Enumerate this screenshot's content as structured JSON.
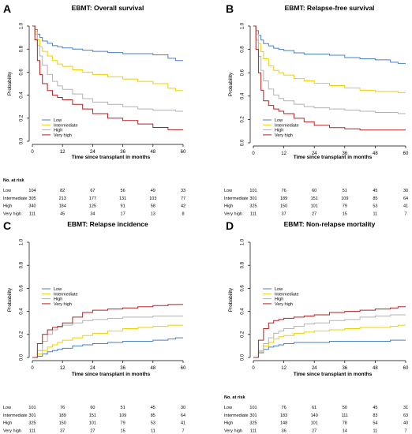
{
  "panels": [
    {
      "letter": "A",
      "title": "EBMT: Overall survival",
      "ylabel": "Probability",
      "xlabel": "Time since transplant in months",
      "risk_header": "No. at risk",
      "risk_table": [
        {
          "group": "Low",
          "counts": [
            "104",
            "82",
            "67",
            "56",
            "49",
            "33"
          ]
        },
        {
          "group": "Intermediate",
          "counts": [
            "305",
            "213",
            "177",
            "131",
            "103",
            "77"
          ]
        },
        {
          "group": "High",
          "counts": [
            "340",
            "184",
            "125",
            "91",
            "58",
            "42"
          ]
        },
        {
          "group": "Very high",
          "counts": [
            "111",
            "45",
            "34",
            "17",
            "13",
            "8"
          ]
        }
      ]
    },
    {
      "letter": "B",
      "title": "EBMT: Relapse-free survival",
      "ylabel": "Probability",
      "xlabel": "Time since transplant in months",
      "risk_header": "",
      "risk_table": [
        {
          "group": "Low",
          "counts": [
            "101",
            "76",
            "60",
            "51",
            "45",
            "30"
          ]
        },
        {
          "group": "Intermediate",
          "counts": [
            "301",
            "189",
            "151",
            "109",
            "85",
            "64"
          ]
        },
        {
          "group": "High",
          "counts": [
            "325",
            "150",
            "101",
            "79",
            "53",
            "41"
          ]
        },
        {
          "group": "Very high",
          "counts": [
            "111",
            "37",
            "27",
            "15",
            "11",
            "7"
          ]
        }
      ]
    },
    {
      "letter": "C",
      "title": "EBMT: Relapse incidence",
      "ylabel": "Probability",
      "xlabel": "Time since transplant in months",
      "risk_header": "",
      "risk_table": [
        {
          "group": "Low",
          "counts": [
            "101",
            "76",
            "60",
            "51",
            "45",
            "30"
          ]
        },
        {
          "group": "Intermediate",
          "counts": [
            "301",
            "189",
            "151",
            "109",
            "85",
            "64"
          ]
        },
        {
          "group": "High",
          "counts": [
            "325",
            "150",
            "101",
            "79",
            "53",
            "41"
          ]
        },
        {
          "group": "Very high",
          "counts": [
            "111",
            "37",
            "27",
            "15",
            "11",
            "7"
          ]
        }
      ]
    },
    {
      "letter": "D",
      "title": "EBMT: Non-relapse mortality",
      "ylabel": "Probability",
      "xlabel": "Time since transplant in months",
      "risk_header": "No. at risk",
      "risk_table": [
        {
          "group": "Low",
          "counts": [
            "101",
            "76",
            "61",
            "50",
            "45",
            "31"
          ]
        },
        {
          "group": "Intermediate",
          "counts": [
            "301",
            "183",
            "149",
            "111",
            "83",
            "63"
          ]
        },
        {
          "group": "High",
          "counts": [
            "325",
            "148",
            "101",
            "78",
            "54",
            "40"
          ]
        },
        {
          "group": "Very high",
          "counts": [
            "111",
            "36",
            "27",
            "14",
            "11",
            "7"
          ]
        }
      ]
    }
  ],
  "colors": {
    "Low": "#4a7fc9",
    "Intermediate": "#f0d000",
    "High": "#b3b3b3",
    "Very high": "#b22222"
  },
  "chart_data": [
    {
      "type": "line",
      "step": true,
      "title": "EBMT: Overall survival",
      "xlabel": "Time since transplant in months",
      "ylabel": "Probability",
      "xlim": [
        0,
        60
      ],
      "ylim": [
        0,
        1
      ],
      "xticks": [
        "0",
        "12",
        "24",
        "36",
        "48",
        "60"
      ],
      "yticks": [
        "0.0",
        "0.2",
        "0.4",
        "0.6",
        "0.8",
        "1.0"
      ],
      "legend_position": "left, mid-height",
      "series": [
        {
          "name": "Low",
          "x": [
            0,
            1,
            2,
            3,
            4,
            6,
            8,
            10,
            12,
            16,
            20,
            24,
            30,
            36,
            42,
            48,
            54,
            57,
            60
          ],
          "y": [
            1,
            0.97,
            0.93,
            0.9,
            0.87,
            0.85,
            0.83,
            0.82,
            0.81,
            0.8,
            0.79,
            0.78,
            0.77,
            0.76,
            0.76,
            0.75,
            0.72,
            0.7,
            0.7
          ]
        },
        {
          "name": "Intermediate",
          "x": [
            0,
            1,
            2,
            3,
            4,
            6,
            8,
            10,
            12,
            16,
            20,
            24,
            30,
            36,
            42,
            48,
            54,
            57,
            60
          ],
          "y": [
            1,
            0.95,
            0.88,
            0.82,
            0.78,
            0.74,
            0.7,
            0.67,
            0.65,
            0.62,
            0.6,
            0.58,
            0.56,
            0.54,
            0.52,
            0.5,
            0.46,
            0.44,
            0.44
          ]
        },
        {
          "name": "High",
          "x": [
            0,
            1,
            2,
            3,
            4,
            6,
            8,
            10,
            12,
            16,
            20,
            24,
            30,
            36,
            42,
            48,
            54,
            57,
            60
          ],
          "y": [
            1,
            0.93,
            0.83,
            0.74,
            0.66,
            0.58,
            0.52,
            0.48,
            0.45,
            0.41,
            0.37,
            0.34,
            0.32,
            0.3,
            0.28,
            0.27,
            0.27,
            0.26,
            0.26
          ]
        },
        {
          "name": "Very high",
          "x": [
            0,
            1,
            2,
            3,
            4,
            6,
            8,
            10,
            12,
            16,
            20,
            24,
            30,
            36,
            42,
            48,
            54,
            57,
            60
          ],
          "y": [
            1,
            0.88,
            0.7,
            0.58,
            0.5,
            0.44,
            0.4,
            0.38,
            0.36,
            0.32,
            0.28,
            0.24,
            0.2,
            0.18,
            0.15,
            0.12,
            0.1,
            0.1,
            0.1
          ]
        }
      ]
    },
    {
      "type": "line",
      "step": true,
      "title": "EBMT: Relapse-free survival",
      "xlabel": "Time since transplant in months",
      "ylabel": "Probability",
      "xlim": [
        0,
        60
      ],
      "ylim": [
        0,
        1
      ],
      "xticks": [
        "0",
        "12",
        "24",
        "36",
        "48",
        "60"
      ],
      "yticks": [
        "0.0",
        "0.2",
        "0.4",
        "0.6",
        "0.8",
        "1.0"
      ],
      "legend_position": "left, mid-height",
      "series": [
        {
          "name": "Low",
          "x": [
            0,
            1,
            2,
            3,
            4,
            6,
            8,
            10,
            12,
            16,
            20,
            24,
            30,
            36,
            42,
            48,
            54,
            57,
            60
          ],
          "y": [
            1,
            0.96,
            0.92,
            0.88,
            0.85,
            0.83,
            0.81,
            0.8,
            0.79,
            0.77,
            0.76,
            0.76,
            0.75,
            0.73,
            0.72,
            0.71,
            0.69,
            0.68,
            0.68
          ]
        },
        {
          "name": "Intermediate",
          "x": [
            0,
            1,
            2,
            3,
            4,
            6,
            8,
            10,
            12,
            16,
            20,
            24,
            30,
            36,
            42,
            48,
            54,
            57,
            60
          ],
          "y": [
            1,
            0.93,
            0.85,
            0.78,
            0.72,
            0.66,
            0.62,
            0.6,
            0.58,
            0.55,
            0.53,
            0.51,
            0.49,
            0.47,
            0.45,
            0.44,
            0.44,
            0.43,
            0.43
          ]
        },
        {
          "name": "High",
          "x": [
            0,
            1,
            2,
            3,
            4,
            6,
            8,
            10,
            12,
            16,
            20,
            24,
            30,
            36,
            42,
            48,
            54,
            57,
            60
          ],
          "y": [
            1,
            0.88,
            0.74,
            0.62,
            0.53,
            0.46,
            0.41,
            0.38,
            0.36,
            0.33,
            0.31,
            0.3,
            0.29,
            0.28,
            0.27,
            0.26,
            0.26,
            0.25,
            0.25
          ]
        },
        {
          "name": "Very high",
          "x": [
            0,
            1,
            2,
            3,
            4,
            6,
            8,
            10,
            12,
            16,
            20,
            24,
            30,
            36,
            42,
            48,
            54,
            57,
            60
          ],
          "y": [
            1,
            0.8,
            0.6,
            0.45,
            0.36,
            0.32,
            0.29,
            0.27,
            0.25,
            0.21,
            0.18,
            0.15,
            0.13,
            0.12,
            0.11,
            0.11,
            0.11,
            0.11,
            0.11
          ]
        }
      ]
    },
    {
      "type": "line",
      "step": true,
      "title": "EBMT: Relapse incidence",
      "xlabel": "Time since transplant in months",
      "ylabel": "Probability",
      "xlim": [
        0,
        60
      ],
      "ylim": [
        0,
        1
      ],
      "xticks": [
        "0",
        "12",
        "24",
        "36",
        "48",
        "60"
      ],
      "yticks": [
        "0.0",
        "0.2",
        "0.4",
        "0.6",
        "0.8",
        "1.0"
      ],
      "legend_position": "left, mid-height",
      "series": [
        {
          "name": "Low",
          "x": [
            0,
            2,
            4,
            6,
            8,
            10,
            12,
            16,
            20,
            24,
            30,
            36,
            42,
            48,
            54,
            57,
            60
          ],
          "y": [
            0,
            0.01,
            0.03,
            0.05,
            0.06,
            0.07,
            0.08,
            0.1,
            0.11,
            0.12,
            0.13,
            0.14,
            0.14,
            0.15,
            0.16,
            0.17,
            0.17
          ]
        },
        {
          "name": "Intermediate",
          "x": [
            0,
            2,
            4,
            6,
            8,
            10,
            12,
            16,
            20,
            24,
            30,
            36,
            42,
            48,
            54,
            57,
            60
          ],
          "y": [
            0,
            0.03,
            0.06,
            0.09,
            0.11,
            0.13,
            0.15,
            0.17,
            0.19,
            0.21,
            0.23,
            0.25,
            0.26,
            0.27,
            0.28,
            0.28,
            0.28
          ]
        },
        {
          "name": "High",
          "x": [
            0,
            2,
            4,
            6,
            8,
            10,
            12,
            16,
            20,
            24,
            30,
            36,
            42,
            48,
            54,
            57,
            60
          ],
          "y": [
            0,
            0.06,
            0.14,
            0.2,
            0.24,
            0.26,
            0.28,
            0.3,
            0.32,
            0.33,
            0.34,
            0.35,
            0.35,
            0.36,
            0.36,
            0.36,
            0.36
          ]
        },
        {
          "name": "Very high",
          "x": [
            0,
            2,
            4,
            6,
            8,
            10,
            12,
            16,
            20,
            24,
            30,
            36,
            42,
            48,
            54,
            57,
            60
          ],
          "y": [
            0,
            0.12,
            0.2,
            0.24,
            0.26,
            0.27,
            0.3,
            0.35,
            0.39,
            0.41,
            0.42,
            0.43,
            0.44,
            0.45,
            0.46,
            0.46,
            0.46
          ]
        }
      ]
    },
    {
      "type": "line",
      "step": true,
      "title": "EBMT: Non-relapse mortality",
      "xlabel": "Time since transplant in months",
      "ylabel": "Probability",
      "xlim": [
        0,
        60
      ],
      "ylim": [
        0,
        1
      ],
      "xticks": [
        "0",
        "12",
        "24",
        "36",
        "48",
        "60"
      ],
      "yticks": [
        "0.0",
        "0.2",
        "0.4",
        "0.6",
        "0.8",
        "1.0"
      ],
      "legend_position": "left, mid-height",
      "series": [
        {
          "name": "Low",
          "x": [
            0,
            2,
            4,
            6,
            8,
            10,
            12,
            16,
            20,
            24,
            30,
            36,
            42,
            48,
            54,
            57,
            60
          ],
          "y": [
            0,
            0.04,
            0.07,
            0.09,
            0.1,
            0.11,
            0.12,
            0.13,
            0.13,
            0.13,
            0.14,
            0.14,
            0.14,
            0.14,
            0.15,
            0.15,
            0.15
          ]
        },
        {
          "name": "Intermediate",
          "x": [
            0,
            2,
            4,
            6,
            8,
            10,
            12,
            16,
            20,
            24,
            30,
            36,
            42,
            48,
            54,
            57,
            60
          ],
          "y": [
            0,
            0.05,
            0.1,
            0.13,
            0.16,
            0.18,
            0.19,
            0.21,
            0.22,
            0.23,
            0.24,
            0.25,
            0.26,
            0.26,
            0.27,
            0.28,
            0.28
          ]
        },
        {
          "name": "High",
          "x": [
            0,
            2,
            4,
            6,
            8,
            10,
            12,
            16,
            20,
            24,
            30,
            36,
            42,
            48,
            54,
            57,
            60
          ],
          "y": [
            0,
            0.06,
            0.12,
            0.17,
            0.21,
            0.23,
            0.25,
            0.27,
            0.29,
            0.3,
            0.32,
            0.33,
            0.35,
            0.36,
            0.37,
            0.37,
            0.37
          ]
        },
        {
          "name": "Very high",
          "x": [
            0,
            2,
            4,
            6,
            8,
            10,
            12,
            16,
            20,
            24,
            30,
            36,
            42,
            48,
            54,
            57,
            60
          ],
          "y": [
            0,
            0.15,
            0.25,
            0.3,
            0.32,
            0.33,
            0.34,
            0.35,
            0.36,
            0.37,
            0.39,
            0.4,
            0.41,
            0.42,
            0.43,
            0.44,
            0.44
          ]
        }
      ]
    }
  ]
}
